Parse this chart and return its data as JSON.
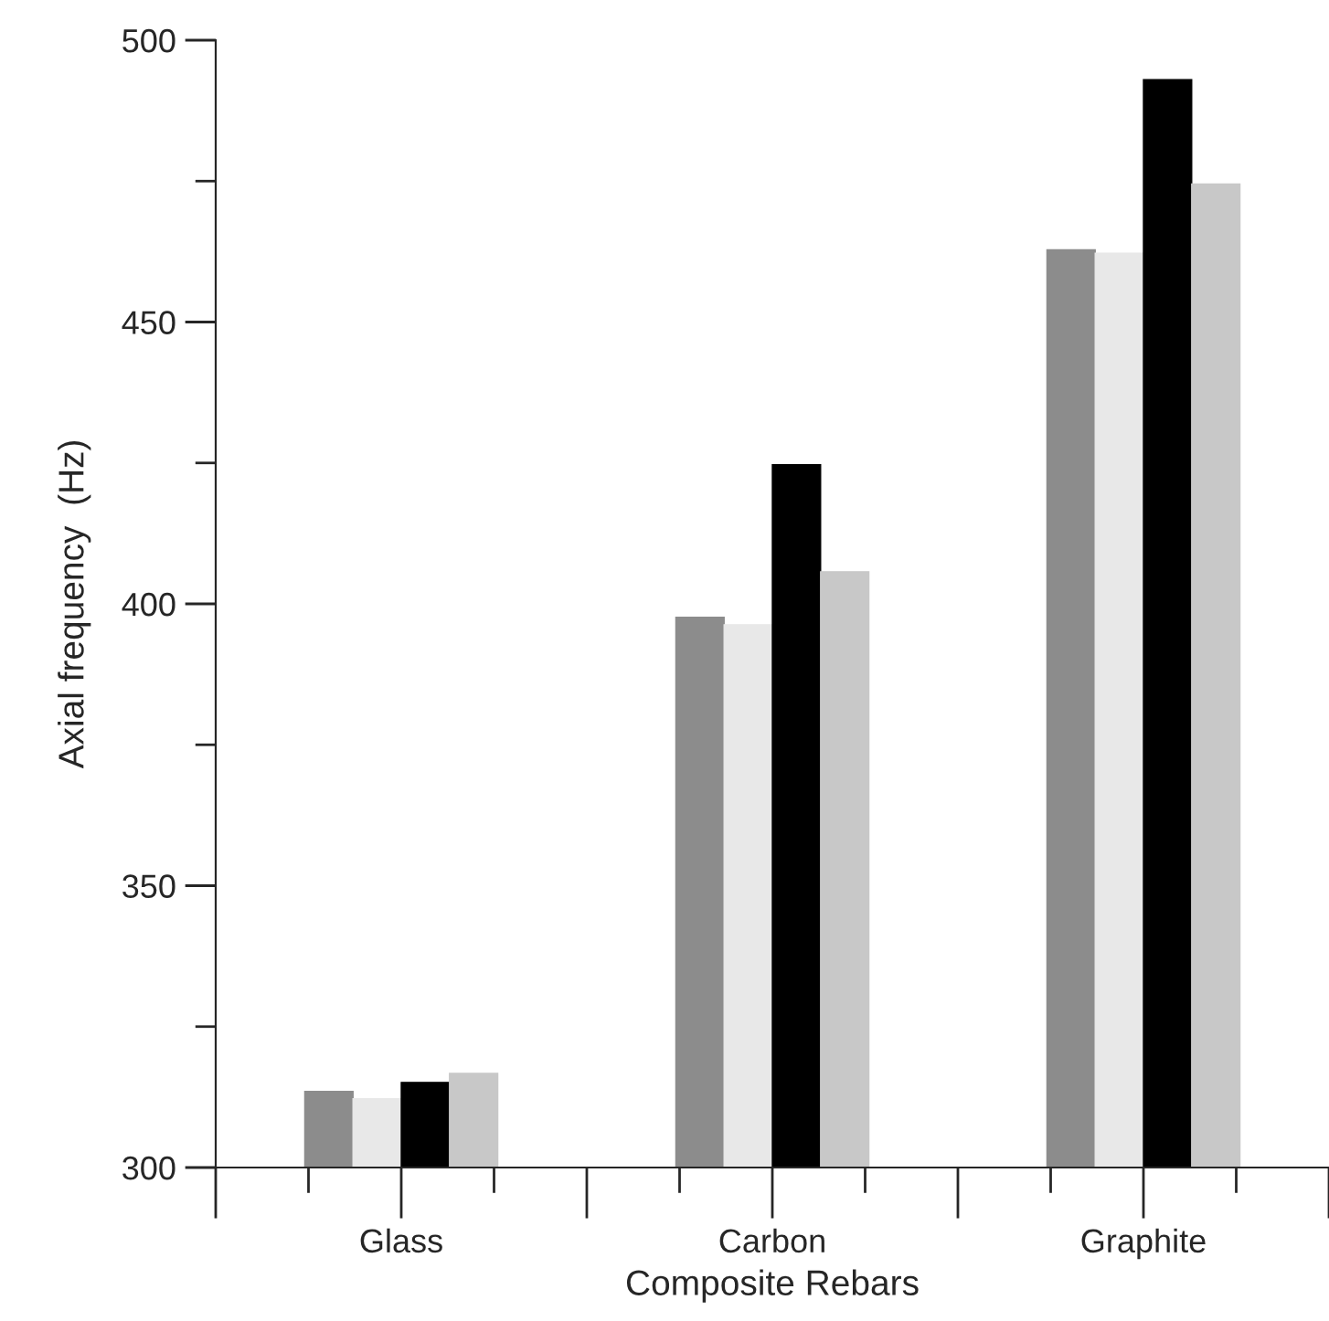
{
  "chart_data": {
    "type": "bar",
    "xlabel": "Composite Rebars",
    "ylabel": "Axial frequency  (Hz)",
    "categories": [
      "Glass",
      "Carbon",
      "Graphite"
    ],
    "series": [
      {
        "color": "#8c8c8c",
        "values": [
          313.5,
          397.6,
          462.8
        ]
      },
      {
        "color": "#e8e8e8",
        "values": [
          312.2,
          396.3,
          462.2
        ]
      },
      {
        "color": "#000000",
        "values": [
          315.1,
          424.7,
          493.0
        ]
      },
      {
        "color": "#c8c8c8",
        "values": [
          316.7,
          405.7,
          474.5
        ]
      }
    ],
    "ylim": [
      300,
      500
    ],
    "yticks": [
      300,
      350,
      400,
      450,
      500
    ],
    "grid": false,
    "legend": false
  }
}
